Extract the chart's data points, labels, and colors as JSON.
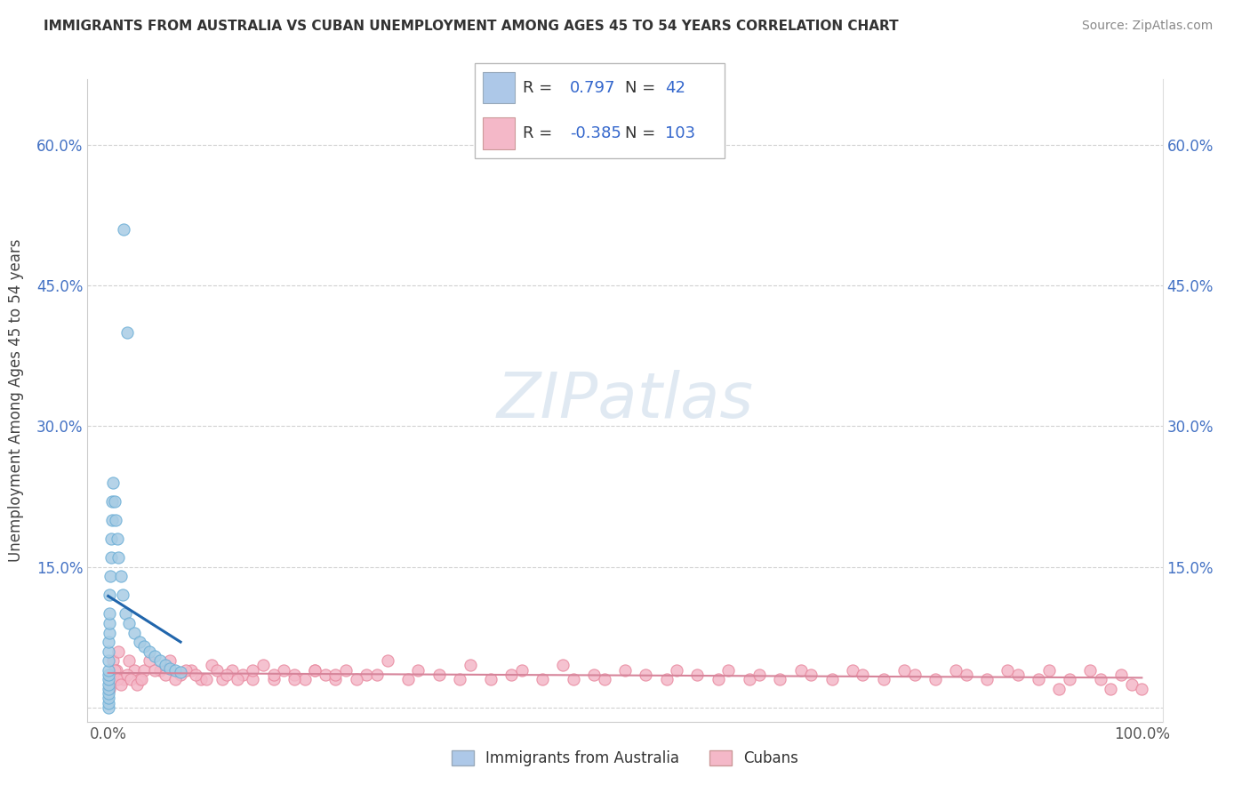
{
  "title": "IMMIGRANTS FROM AUSTRALIA VS CUBAN UNEMPLOYMENT AMONG AGES 45 TO 54 YEARS CORRELATION CHART",
  "source": "Source: ZipAtlas.com",
  "ylabel": "Unemployment Among Ages 45 to 54 years",
  "xlim": [
    -2.0,
    102.0
  ],
  "ylim": [
    -1.5,
    67.0
  ],
  "yticks": [
    0,
    15,
    30,
    45,
    60
  ],
  "ytick_labels": [
    "",
    "15.0%",
    "30.0%",
    "45.0%",
    "60.0%"
  ],
  "xticks": [
    0,
    100
  ],
  "xtick_labels": [
    "0.0%",
    "100.0%"
  ],
  "r_australia": 0.797,
  "n_australia": 42,
  "r_cubans": -0.385,
  "n_cubans": 103,
  "blue_scatter_color": "#a8cce4",
  "blue_scatter_edge": "#6baed6",
  "pink_scatter_color": "#f4b8c8",
  "pink_scatter_edge": "#e8889e",
  "blue_line_color": "#2166ac",
  "pink_line_color": "#d6849a",
  "legend_blue_fill": "#adc8e8",
  "legend_pink_fill": "#f4b8c8",
  "grid_color": "#cccccc",
  "watermark_color": "#c8d8e8",
  "aus_x": [
    0.0,
    0.0,
    0.0,
    0.0,
    0.0,
    0.0,
    0.0,
    0.0,
    0.0,
    0.0,
    0.05,
    0.05,
    0.08,
    0.1,
    0.12,
    0.15,
    0.2,
    0.25,
    0.3,
    0.35,
    0.4,
    0.5,
    0.6,
    0.7,
    0.9,
    1.0,
    1.2,
    1.4,
    1.7,
    2.0,
    2.5,
    3.0,
    3.5,
    4.0,
    4.5,
    5.0,
    5.5,
    6.0,
    6.5,
    7.0,
    1.5,
    1.8
  ],
  "aus_y": [
    0.0,
    0.5,
    1.0,
    1.5,
    2.0,
    2.5,
    3.0,
    3.5,
    4.0,
    5.0,
    6.0,
    7.0,
    8.0,
    9.0,
    10.0,
    12.0,
    14.0,
    16.0,
    18.0,
    20.0,
    22.0,
    24.0,
    22.0,
    20.0,
    18.0,
    16.0,
    14.0,
    12.0,
    10.0,
    9.0,
    8.0,
    7.0,
    6.5,
    6.0,
    5.5,
    5.0,
    4.5,
    4.2,
    4.0,
    3.8,
    51.0,
    40.0
  ],
  "cub_x": [
    0.2,
    0.5,
    0.8,
    1.0,
    1.5,
    2.0,
    2.5,
    3.0,
    3.5,
    4.0,
    5.0,
    6.0,
    7.0,
    8.0,
    9.0,
    10.0,
    11.0,
    12.0,
    13.0,
    14.0,
    15.0,
    16.0,
    17.0,
    18.0,
    19.0,
    20.0,
    21.0,
    22.0,
    23.0,
    25.0,
    27.0,
    29.0,
    30.0,
    32.0,
    34.0,
    35.0,
    37.0,
    39.0,
    40.0,
    42.0,
    44.0,
    45.0,
    47.0,
    48.0,
    50.0,
    52.0,
    54.0,
    55.0,
    57.0,
    59.0,
    60.0,
    62.0,
    63.0,
    65.0,
    67.0,
    68.0,
    70.0,
    72.0,
    73.0,
    75.0,
    77.0,
    78.0,
    80.0,
    82.0,
    83.0,
    85.0,
    87.0,
    88.0,
    90.0,
    91.0,
    92.0,
    93.0,
    95.0,
    96.0,
    97.0,
    98.0,
    99.0,
    100.0,
    0.1,
    0.3,
    0.6,
    0.9,
    1.2,
    1.8,
    2.2,
    2.8,
    3.2,
    4.5,
    5.5,
    6.5,
    7.5,
    8.5,
    9.5,
    10.5,
    11.5,
    12.5,
    14.0,
    16.0,
    18.0,
    20.0,
    22.0,
    24.0,
    26.0
  ],
  "cub_y": [
    3.0,
    5.0,
    4.0,
    6.0,
    3.0,
    5.0,
    4.0,
    3.0,
    4.0,
    5.0,
    4.0,
    5.0,
    3.5,
    4.0,
    3.0,
    4.5,
    3.0,
    4.0,
    3.5,
    3.0,
    4.5,
    3.0,
    4.0,
    3.5,
    3.0,
    4.0,
    3.5,
    3.0,
    4.0,
    3.5,
    5.0,
    3.0,
    4.0,
    3.5,
    3.0,
    4.5,
    3.0,
    3.5,
    4.0,
    3.0,
    4.5,
    3.0,
    3.5,
    3.0,
    4.0,
    3.5,
    3.0,
    4.0,
    3.5,
    3.0,
    4.0,
    3.0,
    3.5,
    3.0,
    4.0,
    3.5,
    3.0,
    4.0,
    3.5,
    3.0,
    4.0,
    3.5,
    3.0,
    4.0,
    3.5,
    3.0,
    4.0,
    3.5,
    3.0,
    4.0,
    2.0,
    3.0,
    4.0,
    3.0,
    2.0,
    3.5,
    2.5,
    2.0,
    2.0,
    3.0,
    4.0,
    3.0,
    2.5,
    3.5,
    3.0,
    2.5,
    3.0,
    4.0,
    3.5,
    3.0,
    4.0,
    3.5,
    3.0,
    4.0,
    3.5,
    3.0,
    4.0,
    3.5,
    3.0,
    4.0,
    3.5,
    3.0,
    3.5
  ]
}
